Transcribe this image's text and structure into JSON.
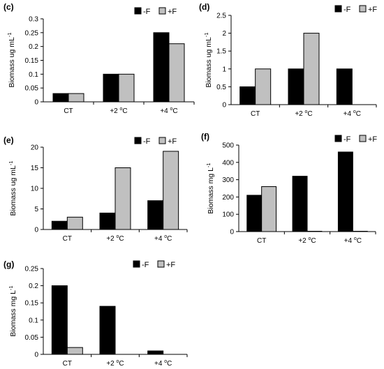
{
  "colors": {
    "minus_f": "#000000",
    "plus_f": "#c0c0c0",
    "axis": "#000000"
  },
  "legend": {
    "minus_label": "-F",
    "plus_label": "+F"
  },
  "chart_data": [
    {
      "id": "c",
      "panel_label": "(c)",
      "type": "bar",
      "ylabel": "Biomass ug mL",
      "ylabel_sup": "-1",
      "categories": [
        {
          "label": "CT",
          "sup": ""
        },
        {
          "label": "+2 ",
          "sup": "o",
          "after": "C"
        },
        {
          "label": "+4 ",
          "sup": "o",
          "after": "C"
        }
      ],
      "yticks": [
        "0",
        "0.05",
        "0.1",
        "0.15",
        "0.2",
        "0.25",
        "0.3"
      ],
      "ylim": [
        0,
        0.3
      ],
      "series": [
        {
          "name": "-F",
          "values": [
            0.03,
            0.1,
            0.25
          ]
        },
        {
          "name": "+F",
          "values": [
            0.03,
            0.1,
            0.21
          ]
        }
      ]
    },
    {
      "id": "d",
      "panel_label": "(d)",
      "type": "bar",
      "ylabel": "Biomass ug mL",
      "ylabel_sup": "-1",
      "categories": [
        {
          "label": "CT",
          "sup": ""
        },
        {
          "label": "+2 ",
          "sup": "o",
          "after": "C"
        },
        {
          "label": "+4 ",
          "sup": "o",
          "after": "C"
        }
      ],
      "yticks": [
        "0",
        "0.5",
        "1",
        "1.5",
        "2",
        "2.5"
      ],
      "ylim": [
        0,
        2.5
      ],
      "series": [
        {
          "name": "-F",
          "values": [
            0.5,
            1.0,
            1.0
          ]
        },
        {
          "name": "+F",
          "values": [
            1.0,
            2.0,
            0
          ]
        }
      ]
    },
    {
      "id": "e",
      "panel_label": "(e)",
      "type": "bar",
      "ylabel": "Biomass ug mL",
      "ylabel_sup": "-1",
      "categories": [
        {
          "label": "CT",
          "sup": ""
        },
        {
          "label": "+2 ",
          "sup": "o",
          "after": "C"
        },
        {
          "label": "+4 ",
          "sup": "o",
          "after": "C"
        }
      ],
      "yticks": [
        "0",
        "5",
        "10",
        "15",
        "20"
      ],
      "ylim": [
        0,
        20
      ],
      "series": [
        {
          "name": "-F",
          "values": [
            2,
            4,
            7
          ]
        },
        {
          "name": "+F",
          "values": [
            3,
            15,
            19
          ]
        }
      ]
    },
    {
      "id": "f",
      "panel_label": "(f)",
      "type": "bar",
      "ylabel": "Biomass mg L",
      "ylabel_sup": "-1",
      "categories": [
        {
          "label": "CT",
          "sup": ""
        },
        {
          "label": "+2 ",
          "sup": "o",
          "after": "C"
        },
        {
          "label": "+4 ",
          "sup": "o",
          "after": "C"
        }
      ],
      "yticks": [
        "0",
        "100",
        "200",
        "300",
        "400",
        "500"
      ],
      "ylim": [
        0,
        500
      ],
      "series": [
        {
          "name": "-F",
          "values": [
            210,
            320,
            460
          ]
        },
        {
          "name": "+F",
          "values": [
            260,
            2,
            2
          ]
        }
      ]
    },
    {
      "id": "g",
      "panel_label": "(g)",
      "type": "bar",
      "ylabel": "Biomass mg L",
      "ylabel_sup": "-1",
      "categories": [
        {
          "label": "CT",
          "sup": ""
        },
        {
          "label": "+2 ",
          "sup": "o",
          "after": "C"
        },
        {
          "label": "+4 ",
          "sup": "o",
          "after": "C"
        }
      ],
      "yticks": [
        "0",
        "0.05",
        "0.1",
        "0.15",
        "0.2",
        "0.25"
      ],
      "ylim": [
        0,
        0.25
      ],
      "series": [
        {
          "name": "-F",
          "values": [
            0.2,
            0.14,
            0.01
          ]
        },
        {
          "name": "+F",
          "values": [
            0.02,
            0,
            0
          ]
        }
      ]
    }
  ]
}
